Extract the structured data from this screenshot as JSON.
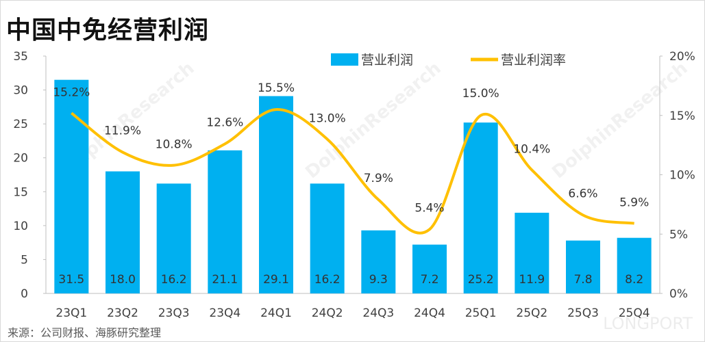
{
  "title": "中国中免经营利润",
  "source": "来源：公司财报、海豚研究整理",
  "watermarks": [
    "DolphinResearch",
    "LONGPORT"
  ],
  "colors": {
    "bar": "#00B0F0",
    "line": "#FFC000",
    "axis": "#bfbfbf",
    "text": "#404040"
  },
  "chart_data": {
    "type": "bar+line",
    "categories": [
      "23Q1",
      "23Q2",
      "23Q3",
      "23Q4",
      "24Q1",
      "24Q2",
      "24Q3",
      "24Q4",
      "25Q1",
      "25Q2",
      "25Q3",
      "25Q4"
    ],
    "series": [
      {
        "name": "营业利润",
        "type": "bar",
        "axis": "left",
        "values": [
          31.5,
          18.0,
          16.2,
          21.1,
          29.1,
          16.2,
          9.3,
          7.2,
          25.2,
          11.9,
          7.8,
          8.2
        ],
        "labels": [
          "31.5",
          "18.0",
          "16.2",
          "21.1",
          "29.1",
          "16.2",
          "9.3",
          "7.2",
          "25.2",
          "11.9",
          "7.8",
          "8.2"
        ]
      },
      {
        "name": "营业利润率",
        "type": "line",
        "axis": "right",
        "values": [
          15.2,
          11.9,
          10.8,
          12.6,
          15.5,
          13.0,
          7.9,
          5.4,
          15.0,
          10.4,
          6.6,
          5.9
        ],
        "labels": [
          "15.2%",
          "11.9%",
          "10.8%",
          "12.6%",
          "15.5%",
          "13.0%",
          "7.9%",
          "5.4%",
          "15.0%",
          "10.4%",
          "6.6%",
          "5.9%"
        ]
      }
    ],
    "y_left": {
      "range": [
        0,
        35
      ],
      "ticks": [
        "0",
        "5",
        "10",
        "15",
        "20",
        "25",
        "30",
        "35"
      ]
    },
    "y_right": {
      "range": [
        0,
        20
      ],
      "unit": "%",
      "ticks": [
        "0%",
        "5%",
        "10%",
        "15%",
        "20%"
      ]
    },
    "legend": {
      "placement": "top-center",
      "items": [
        "营业利润",
        "营业利润率"
      ]
    },
    "grid": false
  }
}
